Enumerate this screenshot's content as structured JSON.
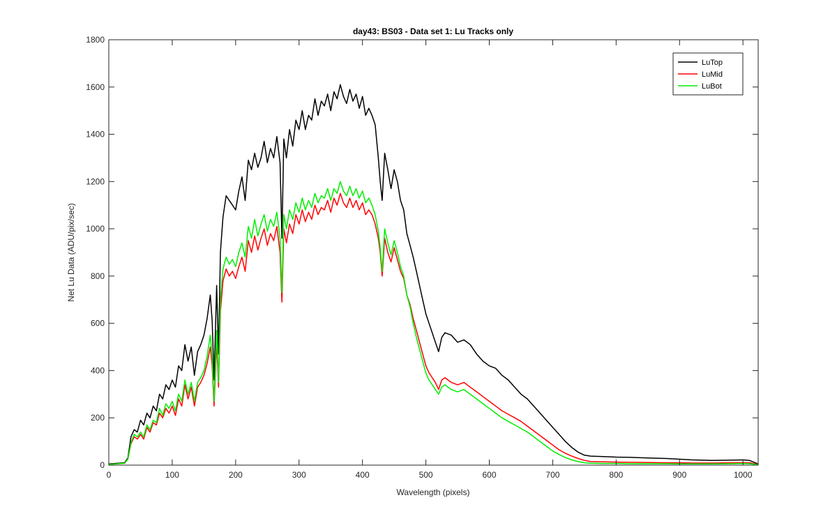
{
  "chart_data": {
    "type": "line",
    "title": "day43: BS03 - Data set 1: Lu Tracks only",
    "xlabel": "Wavelength (pixels)",
    "ylabel": "Net Lu Data (ADU/pix/sec)",
    "xlim": [
      0,
      1024
    ],
    "ylim": [
      0,
      1800
    ],
    "xticks": [
      0,
      100,
      200,
      300,
      400,
      500,
      600,
      700,
      800,
      900,
      1000
    ],
    "yticks": [
      0,
      200,
      400,
      600,
      800,
      1000,
      1200,
      1400,
      1600,
      1800
    ],
    "grid": false,
    "legend_location": "top-right",
    "series": [
      {
        "name": "LuTop",
        "color": "#000000",
        "x": [
          0,
          25,
          30,
          35,
          40,
          45,
          50,
          55,
          60,
          65,
          70,
          75,
          80,
          85,
          90,
          95,
          100,
          105,
          110,
          115,
          120,
          125,
          130,
          135,
          140,
          145,
          150,
          155,
          160,
          163,
          166,
          170,
          173,
          176,
          180,
          185,
          190,
          195,
          200,
          205,
          210,
          215,
          220,
          225,
          230,
          235,
          240,
          245,
          250,
          255,
          260,
          265,
          270,
          273,
          276,
          280,
          285,
          290,
          295,
          300,
          305,
          310,
          315,
          320,
          325,
          330,
          335,
          340,
          345,
          350,
          355,
          360,
          365,
          370,
          375,
          380,
          385,
          390,
          395,
          400,
          405,
          410,
          415,
          420,
          425,
          428,
          431,
          435,
          440,
          445,
          450,
          455,
          460,
          465,
          470,
          475,
          480,
          485,
          490,
          495,
          500,
          505,
          510,
          515,
          520,
          525,
          530,
          540,
          550,
          560,
          570,
          580,
          590,
          600,
          610,
          620,
          630,
          640,
          650,
          660,
          670,
          680,
          690,
          700,
          710,
          720,
          730,
          740,
          750,
          760,
          780,
          800,
          820,
          850,
          880,
          900,
          920,
          950,
          980,
          1000,
          1010,
          1024
        ],
        "values": [
          5,
          10,
          30,
          120,
          150,
          140,
          190,
          170,
          220,
          200,
          250,
          230,
          300,
          280,
          340,
          320,
          360,
          330,
          420,
          400,
          510,
          440,
          500,
          380,
          480,
          510,
          550,
          620,
          720,
          610,
          360,
          760,
          470,
          900,
          1050,
          1140,
          1120,
          1100,
          1080,
          1160,
          1220,
          1120,
          1290,
          1250,
          1320,
          1260,
          1300,
          1370,
          1280,
          1340,
          1300,
          1390,
          1280,
          960,
          1380,
          1300,
          1420,
          1350,
          1460,
          1420,
          1500,
          1420,
          1480,
          1460,
          1550,
          1480,
          1540,
          1520,
          1570,
          1500,
          1580,
          1550,
          1610,
          1560,
          1530,
          1590,
          1540,
          1570,
          1510,
          1560,
          1480,
          1510,
          1480,
          1440,
          1300,
          1200,
          1120,
          1320,
          1250,
          1170,
          1250,
          1200,
          1120,
          1080,
          980,
          930,
          880,
          820,
          760,
          700,
          640,
          600,
          560,
          520,
          480,
          540,
          560,
          550,
          520,
          530,
          510,
          470,
          440,
          420,
          410,
          380,
          360,
          330,
          300,
          280,
          250,
          220,
          190,
          160,
          130,
          100,
          75,
          55,
          42,
          38,
          36,
          34,
          33,
          30,
          28,
          25,
          22,
          20,
          21,
          22,
          20,
          5
        ]
      },
      {
        "name": "LuMid",
        "color": "#ff0000",
        "x": [
          0,
          25,
          30,
          35,
          40,
          45,
          50,
          55,
          60,
          65,
          70,
          75,
          80,
          85,
          90,
          95,
          100,
          105,
          110,
          115,
          120,
          125,
          130,
          135,
          140,
          145,
          150,
          155,
          160,
          163,
          166,
          170,
          173,
          176,
          180,
          185,
          190,
          195,
          200,
          205,
          210,
          215,
          220,
          225,
          230,
          235,
          240,
          245,
          250,
          255,
          260,
          265,
          270,
          273,
          276,
          280,
          285,
          290,
          295,
          300,
          305,
          310,
          315,
          320,
          325,
          330,
          335,
          340,
          345,
          350,
          355,
          360,
          365,
          370,
          375,
          380,
          385,
          390,
          395,
          400,
          405,
          410,
          415,
          420,
          425,
          428,
          431,
          435,
          440,
          445,
          450,
          455,
          460,
          465,
          470,
          475,
          480,
          485,
          490,
          495,
          500,
          505,
          510,
          515,
          520,
          525,
          530,
          540,
          550,
          560,
          570,
          580,
          590,
          600,
          610,
          620,
          630,
          640,
          650,
          660,
          670,
          680,
          690,
          700,
          710,
          720,
          730,
          740,
          750,
          760,
          780,
          800,
          820,
          850,
          880,
          900,
          920,
          950,
          980,
          1000,
          1010,
          1024
        ],
        "values": [
          3,
          8,
          25,
          90,
          120,
          110,
          130,
          110,
          160,
          140,
          180,
          170,
          220,
          200,
          240,
          220,
          250,
          210,
          280,
          250,
          340,
          280,
          330,
          250,
          330,
          350,
          380,
          430,
          500,
          420,
          250,
          520,
          330,
          650,
          780,
          830,
          800,
          820,
          790,
          840,
          880,
          820,
          950,
          900,
          970,
          910,
          960,
          1000,
          930,
          980,
          950,
          1010,
          900,
          690,
          1000,
          940,
          1020,
          980,
          1060,
          1020,
          1080,
          1030,
          1070,
          1040,
          1100,
          1060,
          1090,
          1080,
          1120,
          1070,
          1130,
          1100,
          1150,
          1110,
          1090,
          1130,
          1090,
          1120,
          1080,
          1110,
          1060,
          1080,
          1060,
          1020,
          960,
          900,
          800,
          960,
          900,
          860,
          920,
          870,
          820,
          790,
          720,
          680,
          620,
          570,
          520,
          470,
          420,
          390,
          370,
          350,
          320,
          360,
          370,
          350,
          340,
          350,
          330,
          310,
          290,
          270,
          250,
          230,
          215,
          200,
          185,
          165,
          145,
          125,
          105,
          85,
          65,
          50,
          38,
          28,
          20,
          15,
          14,
          13,
          12,
          11,
          10,
          10,
          9,
          9,
          10,
          10,
          10,
          3
        ]
      },
      {
        "name": "LuBot",
        "color": "#00ee00",
        "x": [
          0,
          25,
          30,
          35,
          40,
          45,
          50,
          55,
          60,
          65,
          70,
          75,
          80,
          85,
          90,
          95,
          100,
          105,
          110,
          115,
          120,
          125,
          130,
          135,
          140,
          145,
          150,
          155,
          160,
          163,
          166,
          170,
          173,
          176,
          180,
          185,
          190,
          195,
          200,
          205,
          210,
          215,
          220,
          225,
          230,
          235,
          240,
          245,
          250,
          255,
          260,
          265,
          270,
          273,
          276,
          280,
          285,
          290,
          295,
          300,
          305,
          310,
          315,
          320,
          325,
          330,
          335,
          340,
          345,
          350,
          355,
          360,
          365,
          370,
          375,
          380,
          385,
          390,
          395,
          400,
          405,
          410,
          415,
          420,
          425,
          428,
          431,
          435,
          440,
          445,
          450,
          455,
          460,
          465,
          470,
          475,
          480,
          485,
          490,
          495,
          500,
          505,
          510,
          515,
          520,
          525,
          530,
          540,
          550,
          560,
          570,
          580,
          590,
          600,
          610,
          620,
          630,
          640,
          650,
          660,
          670,
          680,
          690,
          700,
          710,
          720,
          730,
          740,
          750,
          760,
          780,
          800,
          820,
          850,
          880,
          900,
          920,
          950,
          980,
          1000,
          1010,
          1024
        ],
        "values": [
          3,
          8,
          25,
          95,
          130,
          120,
          140,
          120,
          170,
          150,
          190,
          180,
          240,
          210,
          260,
          240,
          270,
          230,
          300,
          270,
          360,
          300,
          350,
          270,
          350,
          370,
          400,
          460,
          550,
          450,
          270,
          570,
          350,
          700,
          830,
          880,
          850,
          870,
          840,
          900,
          940,
          880,
          1010,
          960,
          1040,
          970,
          1020,
          1060,
          990,
          1040,
          1010,
          1070,
          960,
          730,
          1060,
          1000,
          1080,
          1040,
          1110,
          1070,
          1130,
          1080,
          1120,
          1090,
          1150,
          1110,
          1140,
          1130,
          1170,
          1120,
          1170,
          1150,
          1200,
          1160,
          1140,
          1180,
          1140,
          1170,
          1130,
          1160,
          1110,
          1130,
          1100,
          1060,
          990,
          920,
          820,
          1000,
          940,
          890,
          950,
          900,
          840,
          800,
          720,
          670,
          600,
          540,
          490,
          440,
          390,
          360,
          340,
          320,
          300,
          330,
          340,
          320,
          310,
          320,
          300,
          280,
          260,
          240,
          220,
          200,
          185,
          170,
          155,
          140,
          120,
          100,
          80,
          60,
          45,
          32,
          22,
          15,
          10,
          8,
          7,
          7,
          6,
          6,
          6,
          5,
          5,
          5,
          6,
          7,
          6,
          2
        ]
      }
    ]
  }
}
